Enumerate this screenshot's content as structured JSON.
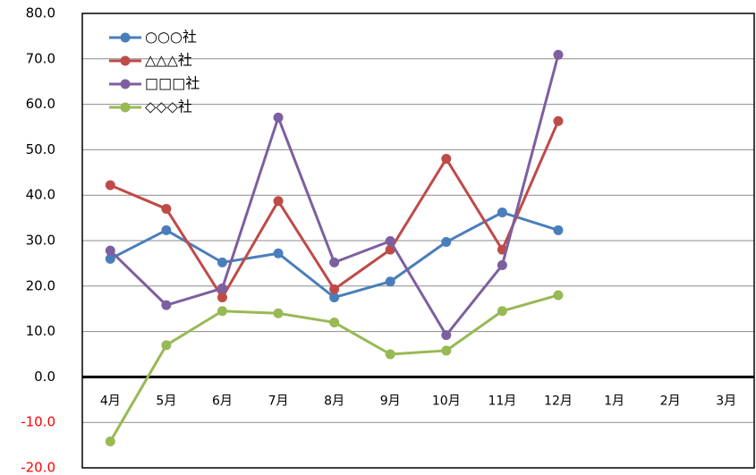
{
  "chart_data": {
    "type": "line",
    "categories": [
      "4月",
      "5月",
      "6月",
      "7月",
      "8月",
      "9月",
      "10月",
      "11月",
      "12月",
      "1月",
      "2月",
      "3月"
    ],
    "series": [
      {
        "name": "○○○社",
        "color": "#4a7ebb",
        "values": [
          26,
          32.3,
          25.2,
          27.2,
          17.5,
          21,
          29.7,
          36.2,
          32.3,
          null,
          null,
          null
        ]
      },
      {
        "name": "△△△社",
        "color": "#be4b48",
        "values": [
          42.2,
          37,
          17.5,
          38.7,
          19.3,
          28,
          48,
          28,
          56.3,
          null,
          null,
          null
        ]
      },
      {
        "name": "□□□社",
        "color": "#7d5fa0",
        "values": [
          27.8,
          15.8,
          19.5,
          57.1,
          25.2,
          29.9,
          9.2,
          24.6,
          70.9,
          null,
          null,
          null
        ]
      },
      {
        "name": "◇◇◇社",
        "color": "#98b954",
        "values": [
          -14.2,
          7,
          14.5,
          14,
          12,
          5,
          5.8,
          14.5,
          18,
          null,
          null,
          null
        ]
      }
    ],
    "ylim": [
      -20,
      80
    ],
    "yticks": [
      {
        "value": -20,
        "label": "-20.0"
      },
      {
        "value": -10,
        "label": "-10.0"
      },
      {
        "value": 0,
        "label": "0.0"
      },
      {
        "value": 10,
        "label": "10.0"
      },
      {
        "value": 20,
        "label": "20.0"
      },
      {
        "value": 30,
        "label": "30.0"
      },
      {
        "value": 40,
        "label": "40.0"
      },
      {
        "value": 50,
        "label": "50.0"
      },
      {
        "value": 60,
        "label": "60.0"
      },
      {
        "value": 70,
        "label": "70.0"
      },
      {
        "value": 80,
        "label": "80.0"
      }
    ],
    "negative_tick_color": "#ff0000",
    "grid": true,
    "legend": "top-left"
  }
}
